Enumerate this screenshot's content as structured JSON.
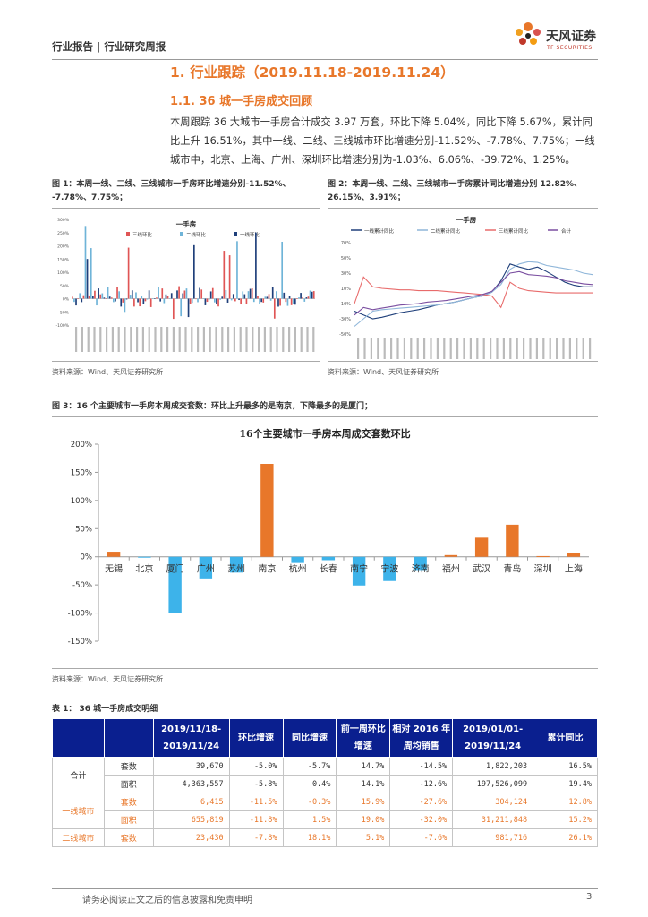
{
  "header": {
    "category": "行业报告 | 行业研究周报"
  },
  "logo": {
    "name_cn": "天风证券",
    "name_en": "TF SECURITIES"
  },
  "section": {
    "title": "1. 行业跟踪（2019.11.18-2019.11.24）",
    "subtitle": "1.1.   36 城一手房成交回顾",
    "paragraph": "本周跟踪 36 大城市一手房合计成交 3.97 万套，环比下降 5.04%，同比下降 5.67%，累计同比上升 16.51%，其中一线、二线、三线城市环比增速分别-11.52%、-7.78%、7.75%；一线城市中，北京、上海、广州、深圳环比增速分别为-1.03%、6.06%、-39.72%、1.25%。"
  },
  "fig1": {
    "caption_line1": "图 1：本周一线、二线、三线城市一手房环比增速分别-11.52%、",
    "caption_line2": "-7.78%、7.75%；",
    "source": "资料来源：Wind、天风证券研究所",
    "chart_title": "一手房",
    "legend": [
      "三线环比",
      "二线环比",
      "一线环比"
    ],
    "yticks": [
      "300%",
      "250%",
      "200%",
      "150%",
      "100%",
      "50%",
      "0%",
      "-50%",
      "-100%"
    ],
    "colors": {
      "tier1": "#1f3f7a",
      "tier2": "#6fb4d8",
      "tier3": "#e05555"
    }
  },
  "fig2": {
    "caption_line1": "图 2：本周一线、二线、三线城市一手房累计同比增速分别 12.82%、",
    "caption_line2": "26.15%、3.91%；",
    "source": "资料来源：Wind、天风证券研究所",
    "chart_title": "一手房",
    "legend": [
      "一线累计同比",
      "二线累计同比",
      "三线累计同比",
      "合计"
    ],
    "yticks": [
      "70%",
      "50%",
      "30%",
      "10%",
      "-10%",
      "-30%",
      "-50%"
    ],
    "colors": {
      "tier1": "#1f3f7a",
      "tier2": "#8fb6d9",
      "tier3": "#e86b6b",
      "total": "#7a4ea0"
    }
  },
  "fig3": {
    "caption": "图 3：16 个主要城市一手房本周成交套数：环比上升最多的是南京，下降最多的是厦门；",
    "source": "资料来源：Wind、天风证券研究所"
  },
  "chart_data": [
    {
      "type": "bar",
      "title": "16个主要城市一手房本周成交套数环比",
      "categories": [
        "无锡",
        "北京",
        "厦门",
        "广州",
        "苏州",
        "南京",
        "杭州",
        "长春",
        "南宁",
        "宁波",
        "济南",
        "福州",
        "武汉",
        "青岛",
        "深圳",
        "上海"
      ],
      "values": [
        9,
        -1,
        -100,
        -40,
        -28,
        165,
        -11,
        -6,
        -51,
        -43,
        -25,
        3,
        34,
        57,
        1.25,
        6.06
      ],
      "ylim": [
        -150,
        200
      ],
      "yticks": [
        "200%",
        "150%",
        "100%",
        "50%",
        "0%",
        "-50%",
        "-100%",
        "-150%"
      ],
      "colors": {
        "positive": "#e8772a",
        "negative": "#3db3ea"
      }
    }
  ],
  "table": {
    "caption": "表 1：   36 城一手房成交明细",
    "headers": [
      "",
      "",
      "2019/11/18-2019/11/24",
      "环比增速",
      "同比增速",
      "前一周环比增速",
      "相对 2016 年周均销售",
      "2019/01/01-2019/11/24",
      "累计同比"
    ],
    "rows": [
      {
        "city": "合计",
        "metric": "套数",
        "cells": [
          "39,670",
          "-5.0%",
          "-5.7%",
          "14.7%",
          "-14.5%",
          "1,822,203",
          "16.5%"
        ]
      },
      {
        "city": "",
        "metric": "面积",
        "cells": [
          "4,363,557",
          "-5.8%",
          "0.4%",
          "14.1%",
          "-12.6%",
          "197,526,099",
          "19.4%"
        ]
      },
      {
        "city": "一线城市",
        "metric": "套数",
        "cells": [
          "6,415",
          "-11.5%",
          "-0.3%",
          "15.9%",
          "-27.6%",
          "304,124",
          "12.8%"
        ]
      },
      {
        "city": "",
        "metric": "面积",
        "cells": [
          "655,819",
          "-11.8%",
          "1.5%",
          "19.0%",
          "-32.0%",
          "31,211,848",
          "15.2%"
        ]
      },
      {
        "city": "二线城市",
        "metric": "套数",
        "cells": [
          "23,430",
          "-7.8%",
          "18.1%",
          "5.1%",
          "-7.6%",
          "981,716",
          "26.1%"
        ]
      }
    ]
  },
  "footer": {
    "disclaimer": "请务必阅读正文之后的信息披露和免责申明",
    "page": "3"
  }
}
